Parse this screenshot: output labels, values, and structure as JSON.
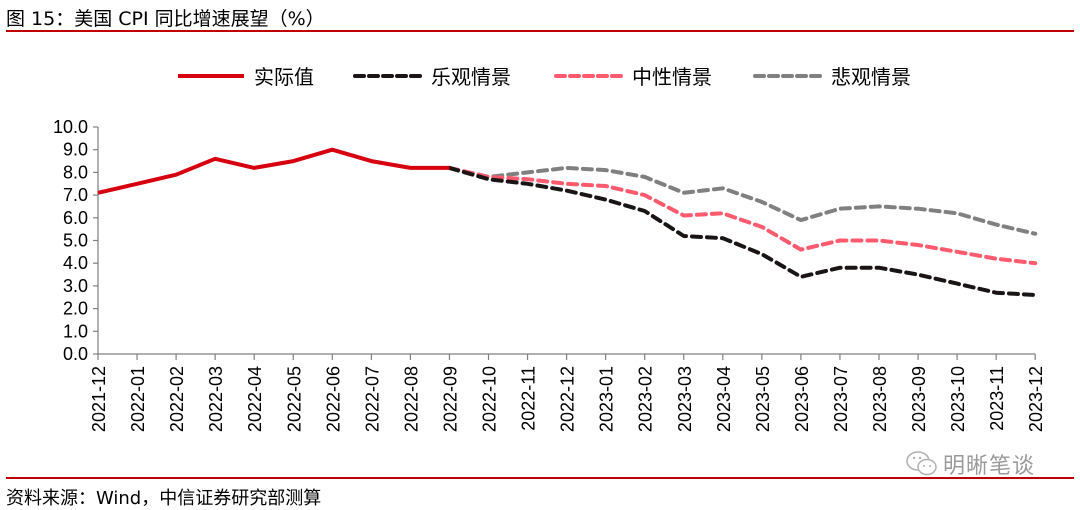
{
  "title": "图 15：美国 CPI 同比增速展望（%）",
  "source": "资料来源：Wind，中信证券研究部测算",
  "watermark": {
    "text": "明晰笔谈",
    "icon": "wechat-icon"
  },
  "chart_data": {
    "type": "line",
    "title": "美国 CPI 同比增速展望（%）",
    "xlabel": "",
    "ylabel": "",
    "ylim": [
      0,
      10
    ],
    "yticks": [
      "0.0",
      "1.0",
      "2.0",
      "3.0",
      "4.0",
      "5.0",
      "6.0",
      "7.0",
      "8.0",
      "9.0",
      "10.0"
    ],
    "grid": false,
    "legend_position": "top",
    "categories": [
      "2021-12",
      "2022-01",
      "2022-02",
      "2022-03",
      "2022-04",
      "2022-05",
      "2022-06",
      "2022-07",
      "2022-08",
      "2022-09",
      "2022-10",
      "2022-11",
      "2022-12",
      "2023-01",
      "2023-02",
      "2023-03",
      "2023-04",
      "2023-05",
      "2023-06",
      "2023-07",
      "2023-08",
      "2023-09",
      "2023-10",
      "2023-11",
      "2023-12"
    ],
    "series": [
      {
        "name": "实际值",
        "color": "#d7000f",
        "style": "solid",
        "values": [
          7.1,
          7.5,
          7.9,
          8.6,
          8.2,
          8.5,
          9.0,
          8.5,
          8.2,
          8.2,
          null,
          null,
          null,
          null,
          null,
          null,
          null,
          null,
          null,
          null,
          null,
          null,
          null,
          null,
          null
        ]
      },
      {
        "name": "乐观情景",
        "color": "#1a1414",
        "style": "dashed",
        "values": [
          null,
          null,
          null,
          null,
          null,
          null,
          null,
          null,
          null,
          8.2,
          7.7,
          7.5,
          7.2,
          6.8,
          6.3,
          5.2,
          5.1,
          4.4,
          3.4,
          3.8,
          3.8,
          3.5,
          3.1,
          2.7,
          2.6
        ]
      },
      {
        "name": "中性情景",
        "color": "#ff5a6e",
        "style": "dashed",
        "values": [
          null,
          null,
          null,
          null,
          null,
          null,
          null,
          null,
          null,
          8.2,
          7.8,
          7.7,
          7.5,
          7.4,
          7.0,
          6.1,
          6.2,
          5.6,
          4.6,
          5.0,
          5.0,
          4.8,
          4.5,
          4.2,
          4.0
        ]
      },
      {
        "name": "悲观情景",
        "color": "#808080",
        "style": "dashed",
        "values": [
          null,
          null,
          null,
          null,
          null,
          null,
          null,
          null,
          null,
          8.2,
          7.8,
          8.0,
          8.2,
          8.1,
          7.8,
          7.1,
          7.3,
          6.7,
          5.9,
          6.4,
          6.5,
          6.4,
          6.2,
          5.7,
          5.3
        ]
      }
    ]
  }
}
